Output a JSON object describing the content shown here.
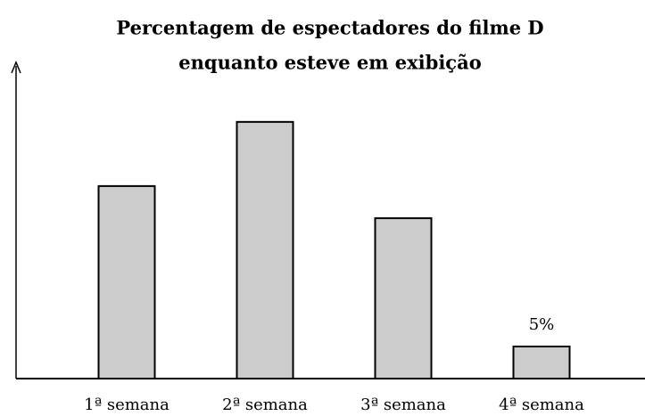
{
  "chart_data": {
    "type": "bar",
    "title": [
      "Percentagem de espectadores do filme D",
      "enquanto esteve em exibição"
    ],
    "categories": [
      "1ª semana",
      "2ª semana",
      "3ª semana",
      "4ª semana"
    ],
    "values": [
      30,
      40,
      25,
      5
    ],
    "value_labels": [
      null,
      null,
      null,
      "5%"
    ],
    "color": "#cccccc",
    "ylim": [
      0,
      49
    ]
  }
}
